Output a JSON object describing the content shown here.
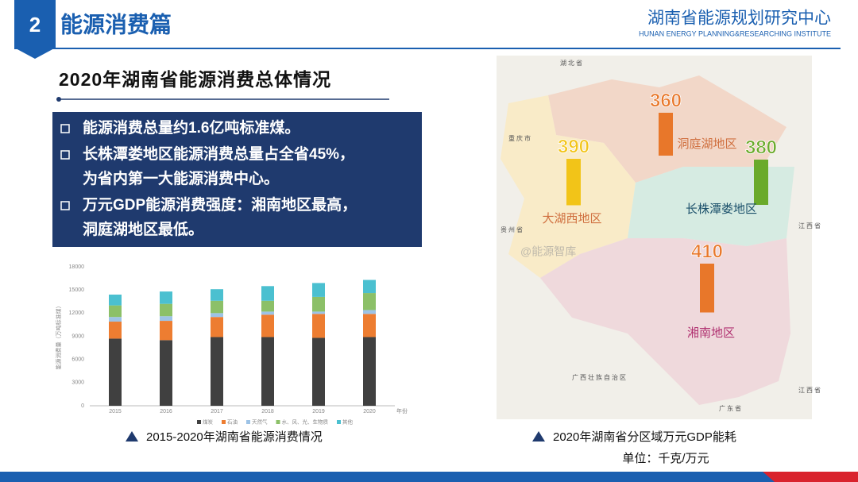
{
  "header": {
    "section_number": "2",
    "section_title": "能源消费篇",
    "org_name": "湖南省能源规划研究中心",
    "org_name_en": "HUNAN ENERGY PLANNING&RESEARCHING INSTITUTE"
  },
  "subtitle": "2020年湖南省能源消费总体情况",
  "bullets": [
    [
      "能源消费总量约1.6亿吨标准煤。"
    ],
    [
      "长株潭娄地区能源消费总量占全省45%，",
      "为省内第一大能源消费中心。"
    ],
    [
      "万元GDP能源消费强度：湘南地区最高，",
      "洞庭湖地区最低。"
    ]
  ],
  "chart_data": {
    "type": "stacked-bar",
    "ylabel": "能源消费量（万吨标准煤）",
    "xlabel": "年份",
    "caption": "2015-2020年湖南省能源消费情况",
    "categories": [
      "2015",
      "2016",
      "2017",
      "2018",
      "2019",
      "2020"
    ],
    "series": [
      {
        "name": "煤炭",
        "color": "#404040",
        "values": [
          8700,
          8500,
          8900,
          8900,
          8800,
          8900
        ]
      },
      {
        "name": "石油",
        "color": "#ed7d31",
        "values": [
          2200,
          2500,
          2600,
          2900,
          3100,
          3000
        ]
      },
      {
        "name": "天然气",
        "color": "#9dc3e6",
        "values": [
          600,
          600,
          500,
          400,
          300,
          500
        ]
      },
      {
        "name": "水、风、光、生物质",
        "color": "#8cc068",
        "values": [
          1500,
          1600,
          1600,
          1400,
          1900,
          2200
        ]
      },
      {
        "name": "其他",
        "color": "#4bc0d0",
        "values": [
          1400,
          1600,
          1500,
          1900,
          1800,
          1700
        ]
      }
    ],
    "ylim": [
      0,
      18000
    ],
    "yticks": [
      0,
      3000,
      6000,
      9000,
      12000,
      15000,
      18000
    ],
    "grid": false
  },
  "map": {
    "caption": "2020年湖南省分区域万元GDP能耗",
    "unit_note": "单位：千克/万元",
    "regions": [
      {
        "name": "洞庭湖地区",
        "value": 360,
        "color": "#e8772a"
      },
      {
        "name": "大湖西地区",
        "value": 390,
        "color": "#f2c418"
      },
      {
        "name": "长株潭娄地区",
        "value": 380,
        "color": "#6aaa2a"
      },
      {
        "name": "湘南地区",
        "value": 410,
        "color": "#e8772a"
      }
    ],
    "places": [
      "湖北省",
      "重庆市",
      "贵州省",
      "江西省",
      "广西壮族自治区",
      "广东省",
      "江西省"
    ],
    "watermark": "@能源智库"
  }
}
